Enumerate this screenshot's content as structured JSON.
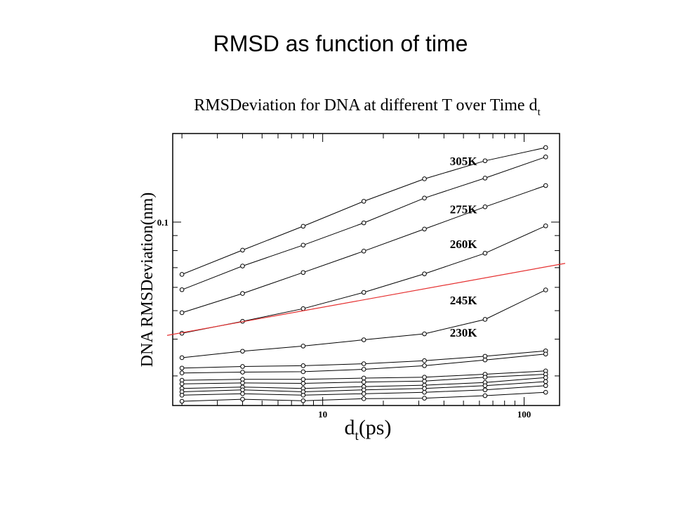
{
  "slide": {
    "title": "RMSD as function of time"
  },
  "chart_data": {
    "type": "line",
    "title": "RMSDeviation for DNA at different T over Time d",
    "title_subscript": "t",
    "xlabel": "d",
    "xlabel_subscript": "t",
    "xlabel_suffix": "(ps)",
    "ylabel": "DNA RMSDeviation(nm)",
    "x_scale": "log",
    "y_scale": "log",
    "xlim": [
      1.8,
      150
    ],
    "ylim": [
      0.0238,
      0.2
    ],
    "x_ticks": [
      10,
      100
    ],
    "x_tick_labels": [
      "10",
      "100"
    ],
    "y_ticks": [
      0.1
    ],
    "y_tick_labels": [
      "0.1"
    ],
    "x": [
      2,
      4,
      8,
      16,
      32,
      64,
      128
    ],
    "series": [
      {
        "values": [
          0.0664,
          0.0803,
          0.0968,
          0.1177,
          0.1403,
          0.1616,
          0.1792
        ]
      },
      {
        "values": [
          0.0589,
          0.0709,
          0.0835,
          0.0994,
          0.1207,
          0.1411,
          0.1665
        ]
      },
      {
        "values": [
          0.0492,
          0.0572,
          0.0674,
          0.0797,
          0.0947,
          0.1127,
          0.1331
        ]
      },
      {
        "values": [
          0.0419,
          0.046,
          0.0508,
          0.0577,
          0.0667,
          0.0784,
          0.0971
        ]
      },
      {
        "values": [
          0.0346,
          0.0364,
          0.0379,
          0.0398,
          0.0417,
          0.0467,
          0.0588
        ]
      },
      {
        "values": [
          0.0319,
          0.0323,
          0.0325,
          0.033,
          0.0338,
          0.035,
          0.0365
        ]
      },
      {
        "values": [
          0.0307,
          0.0309,
          0.031,
          0.0316,
          0.0325,
          0.034,
          0.0356
        ]
      },
      {
        "values": [
          0.029,
          0.0292,
          0.0292,
          0.0295,
          0.0297,
          0.0304,
          0.0312
        ]
      },
      {
        "values": [
          0.0282,
          0.0284,
          0.0283,
          0.0286,
          0.0288,
          0.0297,
          0.0304
        ]
      },
      {
        "values": [
          0.0272,
          0.0275,
          0.0272,
          0.0276,
          0.0279,
          0.0285,
          0.0296
        ]
      },
      {
        "values": [
          0.0265,
          0.0269,
          0.0265,
          0.0269,
          0.0272,
          0.0278,
          0.0287
        ]
      },
      {
        "values": [
          0.0258,
          0.0261,
          0.0258,
          0.0261,
          0.0264,
          0.0269,
          0.0278
        ]
      },
      {
        "values": [
          0.0246,
          0.025,
          0.0247,
          0.0251,
          0.0252,
          0.0257,
          0.0264
        ]
      }
    ],
    "reference_line": {
      "color": "#e53030",
      "x": [
        1.8,
        150
      ],
      "y": [
        0.0412,
        0.0724
      ]
    },
    "annotations": [
      {
        "text": "305K",
        "x": 50,
        "y": 0.156
      },
      {
        "text": "275K",
        "x": 50,
        "y": 0.107
      },
      {
        "text": "260K",
        "x": 50,
        "y": 0.0815
      },
      {
        "text": "245K",
        "x": 50,
        "y": 0.0525
      },
      {
        "text": "230K",
        "x": 50,
        "y": 0.0408
      }
    ],
    "grid": false,
    "legend": "none"
  }
}
